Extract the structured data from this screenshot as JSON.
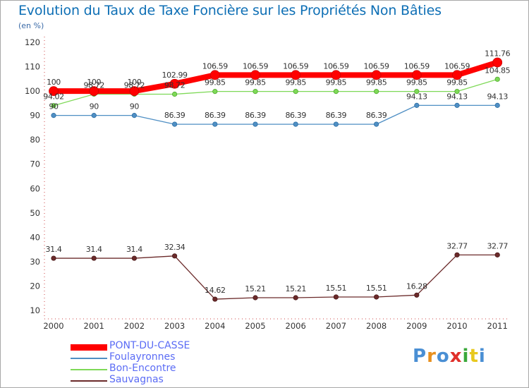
{
  "title": "Evolution du Taux de Taxe Foncière sur les Propriétés Non Bâties",
  "subtitle": "(en %)",
  "logo": {
    "text": "Proxiti",
    "colors": [
      "#4a8fd4",
      "#e8901e",
      "#4a8fd4",
      "#e0302a",
      "#3aa83a",
      "#e8c81e",
      "#4a8fd4"
    ]
  },
  "chart_data": {
    "type": "line",
    "title": "Evolution du Taux de Taxe Foncière sur les Propriétés Non Bâties",
    "ylabel": "(en %)",
    "xlabel": "",
    "ylim": [
      10,
      120
    ],
    "yticks": [
      10,
      20,
      30,
      40,
      50,
      60,
      70,
      80,
      90,
      100,
      110,
      120
    ],
    "grid": false,
    "legend": "bottom-left",
    "x": [
      "2000",
      "2001",
      "2002",
      "2003",
      "2004",
      "2005",
      "2006",
      "2007",
      "2008",
      "2009",
      "2010",
      "2011"
    ],
    "series": [
      {
        "name": "PONT-DU-CASSE",
        "color": "#ff0000",
        "labels": [
          "100",
          "100",
          "100",
          "102.99",
          "106.59",
          "106.59",
          "106.59",
          "106.59",
          "106.59",
          "106.59",
          "106.59",
          "111.76"
        ],
        "values": [
          100,
          100,
          100,
          102.99,
          106.59,
          106.59,
          106.59,
          106.59,
          106.59,
          106.59,
          106.59,
          111.76
        ]
      },
      {
        "name": "Foulayronnes",
        "color": "#4f8fc4",
        "labels": [
          "90",
          "90",
          "90",
          "86.39",
          "86.39",
          "86.39",
          "86.39",
          "86.39",
          "86.39",
          "94.13",
          "94.13",
          "94.13"
        ],
        "values": [
          90,
          90,
          90,
          86.39,
          86.39,
          86.39,
          86.39,
          86.39,
          86.39,
          94.13,
          94.13,
          94.13
        ]
      },
      {
        "name": "Bon-Encontre",
        "color": "#7ed957",
        "labels": [
          "94.02",
          "98.72",
          "98.72",
          "98.72",
          "99.85",
          "99.85",
          "99.85",
          "99.85",
          "99.85",
          "99.85",
          "99.85",
          "104.85"
        ],
        "values": [
          94.02,
          98.72,
          98.72,
          98.72,
          99.85,
          99.85,
          99.85,
          99.85,
          99.85,
          99.85,
          99.85,
          104.85
        ]
      },
      {
        "name": "Sauvagnas",
        "color": "#6b2a2a",
        "labels": [
          "31.4",
          "31.4",
          "31.4",
          "32.34",
          "14.62",
          "15.21",
          "15.21",
          "15.51",
          "15.51",
          "16.28",
          "32.77",
          "32.77"
        ],
        "values": [
          31.4,
          31.4,
          31.4,
          32.34,
          14.62,
          15.21,
          15.21,
          15.51,
          15.51,
          16.28,
          32.77,
          32.77
        ]
      }
    ]
  }
}
